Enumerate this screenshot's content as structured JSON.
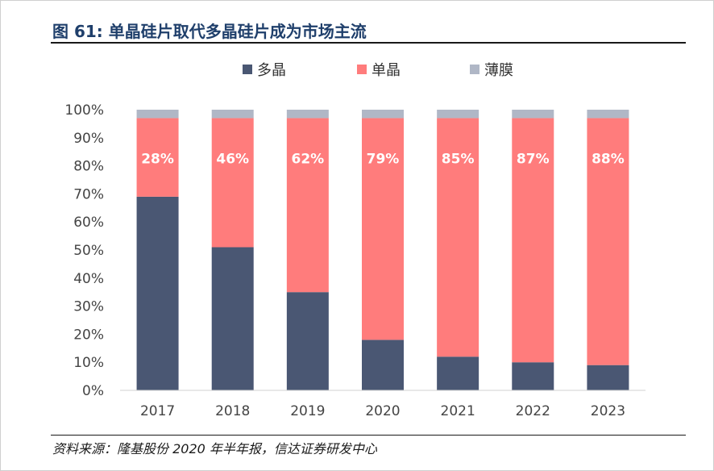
{
  "figure": {
    "title": "图 61:  单晶硅片取代多晶硅片成为市场主流",
    "source": "资料来源：隆基股份 2020 年半年报，信达证券研发中心"
  },
  "chart_data": {
    "type": "bar",
    "stacked": true,
    "categories": [
      "2017",
      "2018",
      "2019",
      "2020",
      "2021",
      "2022",
      "2023"
    ],
    "series": [
      {
        "name": "多晶",
        "color": "#4a5773",
        "values": [
          69,
          51,
          35,
          18,
          12,
          10,
          9
        ]
      },
      {
        "name": "单晶",
        "color": "#ff7c7c",
        "values": [
          28,
          46,
          62,
          79,
          85,
          87,
          88
        ]
      },
      {
        "name": "薄膜",
        "color": "#b0b7c6",
        "values": [
          3,
          3,
          3,
          3,
          3,
          3,
          3
        ]
      }
    ],
    "data_labels": [
      "28%",
      "46%",
      "62%",
      "79%",
      "85%",
      "87%",
      "88%"
    ],
    "y_ticks": [
      "0%",
      "10%",
      "20%",
      "30%",
      "40%",
      "50%",
      "60%",
      "70%",
      "80%",
      "90%",
      "100%"
    ],
    "ylim": [
      0,
      100
    ],
    "grid": false,
    "legend_position": "top"
  }
}
